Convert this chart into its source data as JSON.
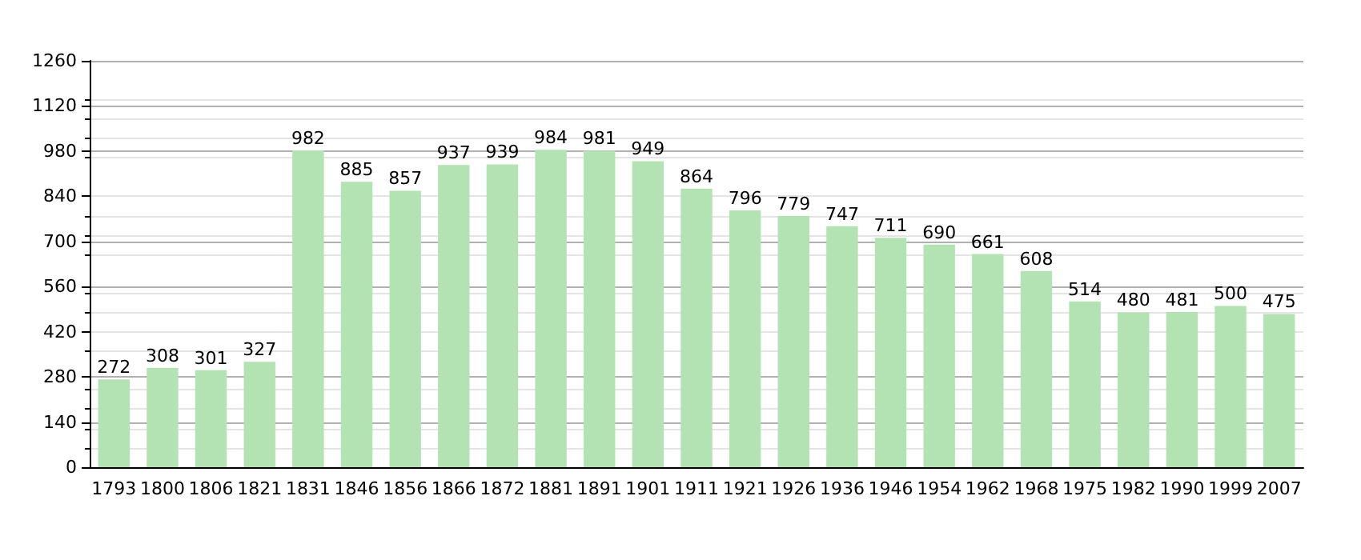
{
  "chart_data": {
    "type": "bar",
    "categories": [
      "1793",
      "1800",
      "1806",
      "1821",
      "1831",
      "1846",
      "1856",
      "1866",
      "1872",
      "1881",
      "1891",
      "1901",
      "1911",
      "1921",
      "1926",
      "1936",
      "1946",
      "1954",
      "1962",
      "1968",
      "1975",
      "1982",
      "1990",
      "1999",
      "2007"
    ],
    "values": [
      272,
      308,
      301,
      327,
      982,
      885,
      857,
      937,
      939,
      984,
      981,
      949,
      864,
      796,
      779,
      747,
      711,
      690,
      661,
      608,
      514,
      480,
      481,
      500,
      475
    ],
    "color": "#b3e3b3",
    "ylim": [
      0,
      1260
    ],
    "yticks": [
      0,
      140,
      280,
      420,
      560,
      700,
      840,
      980,
      1120,
      1260
    ],
    "grid": "y",
    "data_labels": true
  }
}
